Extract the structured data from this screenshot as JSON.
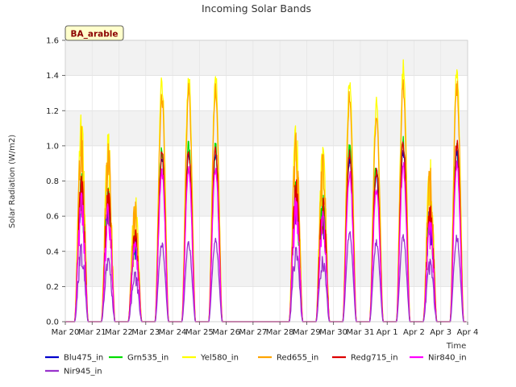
{
  "chart_data": {
    "type": "line",
    "title": "Incoming Solar Bands",
    "site_label": "BA_arable",
    "xlabel": "Time",
    "ylabel": "Solar Radiation (W/m2)",
    "ylim": [
      0,
      1.6
    ],
    "yticks": [
      "0.0",
      "0.2",
      "0.4",
      "0.6",
      "0.8",
      "1.0",
      "1.2",
      "1.4",
      "1.6"
    ],
    "xlim": [
      0,
      15
    ],
    "xticks": [
      "Mar 20",
      "Mar 21",
      "Mar 22",
      "Mar 23",
      "Mar 24",
      "Mar 25",
      "Mar 26",
      "Mar 27",
      "Mar 28",
      "Mar 29",
      "Mar 30",
      "Mar 31",
      "Apr 1",
      "Apr 2",
      "Apr 3",
      "Apr 4"
    ],
    "grid": true,
    "legend_position": "bottom",
    "days": [
      {
        "day": "Mar 20",
        "start": 0.35,
        "end": 0.85,
        "peak": 0.87,
        "nir945": 0.47
      },
      {
        "day": "Mar 21",
        "start": 1.35,
        "end": 1.85,
        "peak": 0.8,
        "nir945": 0.38
      },
      {
        "day": "Mar 22",
        "start": 2.35,
        "end": 2.85,
        "peak": 0.55,
        "nir945": 0.3
      },
      {
        "day": "Mar 23",
        "start": 3.35,
        "end": 3.85,
        "peak": 1.0,
        "nir945": 0.46
      },
      {
        "day": "Mar 24",
        "start": 4.35,
        "end": 4.85,
        "peak": 1.02,
        "nir945": 0.46
      },
      {
        "day": "Mar 25",
        "start": 5.35,
        "end": 5.85,
        "peak": 1.02,
        "nir945": 0.48
      },
      {
        "day": "Mar 28",
        "start": 8.35,
        "end": 8.85,
        "peak": 0.85,
        "nir945": 0.45
      },
      {
        "day": "Mar 29",
        "start": 9.35,
        "end": 9.85,
        "peak": 0.75,
        "nir945": 0.4
      },
      {
        "day": "Mar 30",
        "start": 10.35,
        "end": 10.85,
        "peak": 1.0,
        "nir945": 0.52
      },
      {
        "day": "Mar 31",
        "start": 11.35,
        "end": 11.85,
        "peak": 0.9,
        "nir945": 0.47
      },
      {
        "day": "Apr 1",
        "start": 12.35,
        "end": 12.85,
        "peak": 1.05,
        "nir945": 0.5
      },
      {
        "day": "Apr 2",
        "start": 13.35,
        "end": 13.85,
        "peak": 0.7,
        "nir945": 0.37
      },
      {
        "day": "Apr 3",
        "start": 14.35,
        "end": 14.85,
        "peak": 1.05,
        "nir945": 0.5
      }
    ],
    "series": [
      {
        "name": "Blu475_in",
        "color": "#0000cc",
        "scale": 0.97
      },
      {
        "name": "Grn535_in",
        "color": "#00dd00",
        "scale": 1.02
      },
      {
        "name": "Yel580_in",
        "color": "#ffff00",
        "scale": 1.42
      },
      {
        "name": "Red655_in",
        "color": "#ffa500",
        "scale": 1.33
      },
      {
        "name": "Redg715_in",
        "color": "#dd0000",
        "scale": 1.0
      },
      {
        "name": "Nir840_in",
        "color": "#ff00ff",
        "scale": 0.88
      },
      {
        "name": "Nir945_in",
        "color": "#9932cc",
        "scale": null
      }
    ],
    "gap": {
      "from": "Mar 26",
      "to": "Mar 28",
      "start_value": 0.0,
      "end_values": [
        0.07,
        0.08,
        0.09,
        0.1,
        0.07,
        0.06,
        0.04
      ]
    }
  }
}
